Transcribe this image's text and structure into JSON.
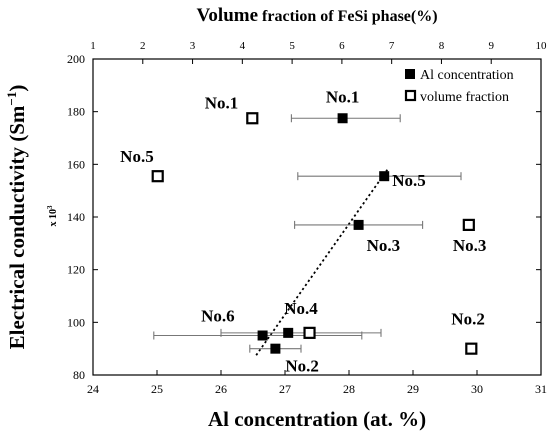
{
  "chart_data": {
    "type": "scatter",
    "top_title_main": "Volume",
    "top_title_rest": " fraction of FeSi phase(%)",
    "xlabel": "Al concentration (at. %)",
    "ylabel": "Electrical conductivity (Sm",
    "ylabel_sup": "−1",
    "ylabel_close": ")",
    "y_multiplier": "x 10",
    "y_multiplier_exp": "3",
    "xlim": [
      24,
      31
    ],
    "x2lim": [
      1,
      10
    ],
    "ylim": [
      80,
      200
    ],
    "x_ticks": [
      "24",
      "25",
      "26",
      "27",
      "28",
      "29",
      "30",
      "31"
    ],
    "x2_ticks": [
      "1",
      "2",
      "3",
      "4",
      "5",
      "6",
      "7",
      "8",
      "9",
      "10"
    ],
    "y_ticks": [
      "80",
      "100",
      "120",
      "140",
      "160",
      "180",
      "200"
    ],
    "legend_position": "top-right",
    "legend": [
      "Al concentration",
      "volume fraction"
    ],
    "series": [
      {
        "name": "Al concentration",
        "marker": "filled-square",
        "points": [
          {
            "label": "No.1",
            "x": 27.9,
            "y": 177.5,
            "xerr_low": 27.1,
            "xerr_high": 28.8
          },
          {
            "label": "No.5",
            "x": 28.55,
            "y": 155.5,
            "xerr_low": 27.2,
            "xerr_high": 29.75
          },
          {
            "label": "No.3",
            "x": 28.15,
            "y": 137,
            "xerr_low": 27.15,
            "xerr_high": 29.15
          },
          {
            "label": "No.4",
            "x": 27.05,
            "y": 96,
            "xerr_low": 26.0,
            "xerr_high": 28.5
          },
          {
            "label": "No.6",
            "x": 26.65,
            "y": 95,
            "xerr_low": 24.95,
            "xerr_high": 28.2
          },
          {
            "label": "No.2",
            "x": 26.85,
            "y": 90,
            "xerr_low": 26.45,
            "xerr_high": 27.25
          }
        ]
      },
      {
        "name": "volume fraction",
        "marker": "open-square",
        "points": [
          {
            "label": "No.1",
            "x2": 4.2,
            "y": 177.5
          },
          {
            "label": "No.5",
            "x2": 2.3,
            "y": 155.5
          },
          {
            "label": "No.3",
            "x2": 8.55,
            "y": 137
          },
          {
            "label": "No.4",
            "x2": 5.35,
            "y": 96
          },
          {
            "label": "No.2",
            "x2": 8.6,
            "y": 90
          }
        ]
      }
    ],
    "trend_line": {
      "style": "dotted",
      "from": {
        "x": 26.55,
        "y": 87.5
      },
      "to": {
        "x": 28.6,
        "y": 158
      }
    }
  }
}
